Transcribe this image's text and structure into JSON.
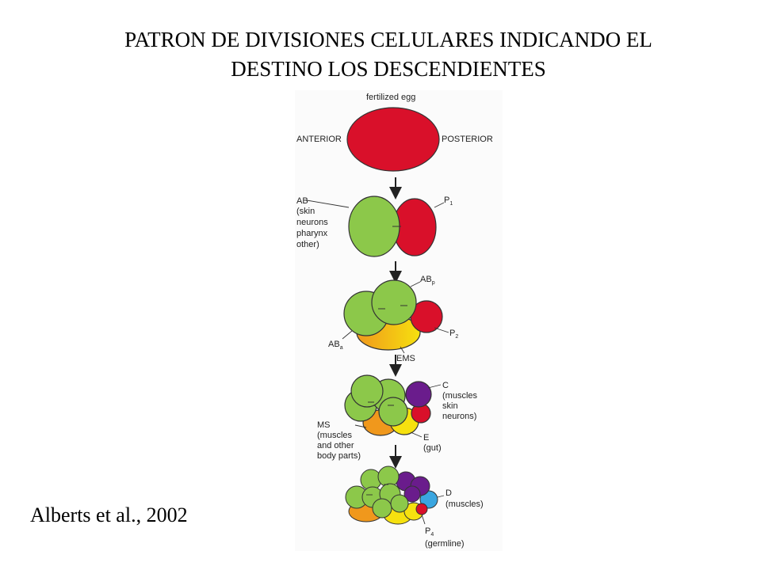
{
  "title": {
    "line1": "PATRON DE DIVISIONES CELULARES INDICANDO EL",
    "line2": "DESTINO LOS DESCENDIENTES"
  },
  "citation": "Alberts et al., 2002",
  "colors": {
    "red": "#d9102a",
    "green": "#8cc84a",
    "yellow": "#f6e10f",
    "orange": "#f0981c",
    "purple": "#6a1c8c",
    "blue": "#3aa6e0"
  },
  "stage1": {
    "label": "fertilized egg",
    "anterior": "ANTERIOR",
    "posterior": "POSTERIOR"
  },
  "stage2": {
    "ab_label": "AB",
    "ab_fates": [
      "(skin",
      "neurons",
      "pharynx",
      "other)"
    ],
    "p1_label": "P",
    "p1_sub": "1"
  },
  "stage3": {
    "abp_label": "AB",
    "abp_sub": "p",
    "aba_label": "AB",
    "aba_sub": "a",
    "p2_label": "P",
    "p2_sub": "2",
    "ems_label": "EMS"
  },
  "stage4": {
    "c_lines": [
      "C",
      "(muscles",
      "skin",
      "neurons)"
    ],
    "ms_lines": [
      "MS",
      "(muscles",
      "and other",
      "body parts)"
    ],
    "e_lines": [
      "E",
      "(gut)"
    ]
  },
  "stage5": {
    "d_label": "D",
    "d_fate": "(muscles)",
    "p4_label": "P",
    "p4_sub": "4",
    "p4_fate": "(germline)"
  }
}
